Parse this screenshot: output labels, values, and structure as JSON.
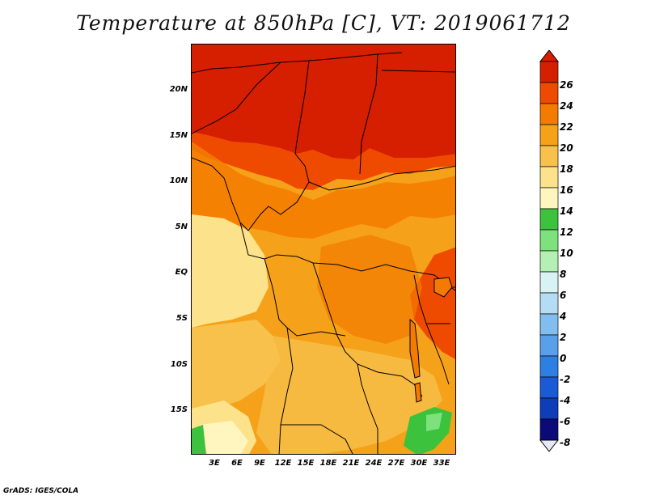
{
  "title": "Temperature at 850hPa [C], VT: 2019061712",
  "footer": "GrADS: IGES/COLA",
  "map": {
    "lat_labels": [
      "20N",
      "15N",
      "10N",
      "5N",
      "EQ",
      "5S",
      "10S",
      "15S"
    ],
    "lon_labels": [
      "3E",
      "6E",
      "9E",
      "12E",
      "15E",
      "18E",
      "21E",
      "24E",
      "27E",
      "30E",
      "33E"
    ]
  },
  "colorbar": {
    "levels": [
      "26",
      "24",
      "22",
      "20",
      "18",
      "16",
      "14",
      "12",
      "10",
      "8",
      "6",
      "4",
      "2",
      "0",
      "-2",
      "-4",
      "-6",
      "-8"
    ],
    "colors": [
      "#d61e00",
      "#ee4a00",
      "#f47b00",
      "#f5a21a",
      "#f7c14b",
      "#fce28a",
      "#fff5be",
      "#3cc23c",
      "#7de17d",
      "#b4f0b4",
      "#d8f3f3",
      "#b4dcf3",
      "#82bdf0",
      "#5a9fea",
      "#2e7fe3",
      "#1a5ad6",
      "#0f3cb8",
      "#0a0a78"
    ]
  }
}
